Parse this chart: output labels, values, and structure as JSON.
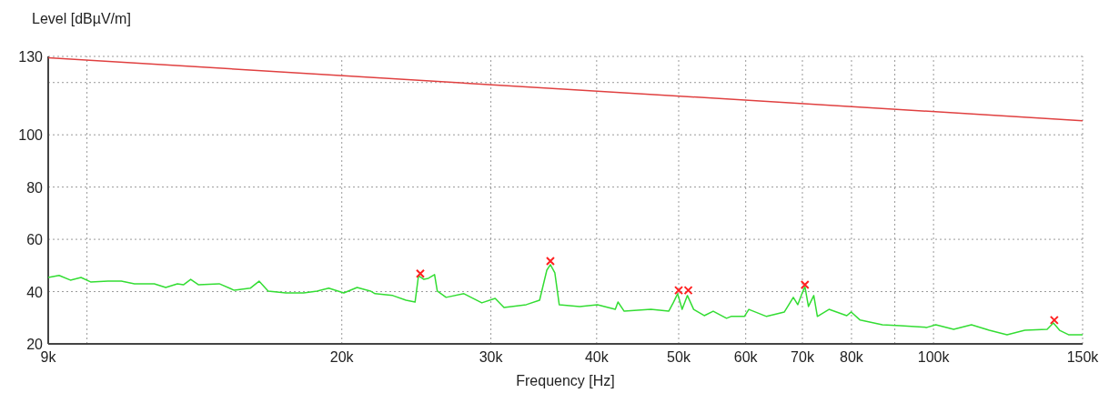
{
  "chart_data": {
    "type": "line",
    "xlabel": "Frequency [Hz]",
    "ylabel": "Level [dBµV/m]",
    "log": "x",
    "grid": true,
    "xlim": [
      9000,
      150000
    ],
    "ylim": [
      20,
      130
    ],
    "xticks": [
      {
        "value": 9000,
        "label": "9k"
      },
      {
        "value": 10000,
        "label": null
      },
      {
        "value": 20000,
        "label": "20k"
      },
      {
        "value": 30000,
        "label": "30k"
      },
      {
        "value": 40000,
        "label": "40k"
      },
      {
        "value": 50000,
        "label": "50k"
      },
      {
        "value": 60000,
        "label": "60k"
      },
      {
        "value": 70000,
        "label": "70k"
      },
      {
        "value": 80000,
        "label": "80k"
      },
      {
        "value": 90000,
        "label": null
      },
      {
        "value": 100000,
        "label": "100k"
      },
      {
        "value": 150000,
        "label": "150k"
      }
    ],
    "yticks": [
      20,
      40,
      60,
      80,
      100,
      {
        "value": 120,
        "label": null
      },
      130
    ],
    "series": [
      {
        "color": "#e04040",
        "line_style": "solid",
        "x": [
          9000,
          150000
        ],
        "values": [
          129.5,
          105.4
        ]
      },
      {
        "color": "#33dd33",
        "line_style": "solid",
        "x": [
          9000,
          9270,
          9560,
          9840,
          10100,
          10590,
          10980,
          11380,
          12010,
          12390,
          12790,
          13000,
          13260,
          13550,
          14330,
          14930,
          15590,
          15970,
          16370,
          17180,
          18030,
          18700,
          19300,
          20110,
          20850,
          21620,
          21890,
          22970,
          23820,
          24410,
          24640,
          25000,
          25310,
          25740,
          25930,
          26560,
          27880,
          29270,
          30350,
          31090,
          33030,
          34250,
          34930,
          35270,
          35700,
          36130,
          38200,
          40090,
          42080,
          42390,
          43110,
          46360,
          48660,
          49260,
          49860,
          50470,
          51200,
          52080,
          53600,
          54920,
          56950,
          57650,
          59780,
          60510,
          63500,
          66650,
          68290,
          69120,
          69970,
          70480,
          71160,
          72200,
          72910,
          75250,
          78980,
          79940,
          81900,
          87010,
          91330,
          98210,
          100620,
          105620,
          110860,
          116360,
          122130,
          128190,
          136200,
          138530,
          140900,
          144340,
          150000
        ],
        "values": [
          45.4,
          46.2,
          44.4,
          45.4,
          43.7,
          44.0,
          44.0,
          43.0,
          43.0,
          41.6,
          43.0,
          42.6,
          44.7,
          42.6,
          43.0,
          40.5,
          41.3,
          44.0,
          40.2,
          39.5,
          39.5,
          40.2,
          41.3,
          39.5,
          41.6,
          40.2,
          39.2,
          38.5,
          36.7,
          36.0,
          46.1,
          44.7,
          45.1,
          46.5,
          40.2,
          37.8,
          39.2,
          35.7,
          37.4,
          33.9,
          35.0,
          36.7,
          48.2,
          50.3,
          47.2,
          35.0,
          34.3,
          35.0,
          33.2,
          36.0,
          32.5,
          33.2,
          32.5,
          35.7,
          39.2,
          33.2,
          38.5,
          33.2,
          30.8,
          32.5,
          29.8,
          30.5,
          30.5,
          33.2,
          30.5,
          32.2,
          37.8,
          35.0,
          39.5,
          41.9,
          34.3,
          38.5,
          30.5,
          33.2,
          30.8,
          32.2,
          29.1,
          27.3,
          27.0,
          26.3,
          27.3,
          25.6,
          27.3,
          25.2,
          23.5,
          25.2,
          25.6,
          28.0,
          25.2,
          23.5,
          23.5
        ]
      },
      {
        "type": "scatter",
        "color": "#ff2020",
        "marker": "cross",
        "x": [
          24760,
          35270,
          50000,
          51320,
          70480,
          138870
        ],
        "values": [
          46.9,
          51.7,
          40.5,
          40.5,
          42.6,
          29.1
        ]
      }
    ]
  }
}
